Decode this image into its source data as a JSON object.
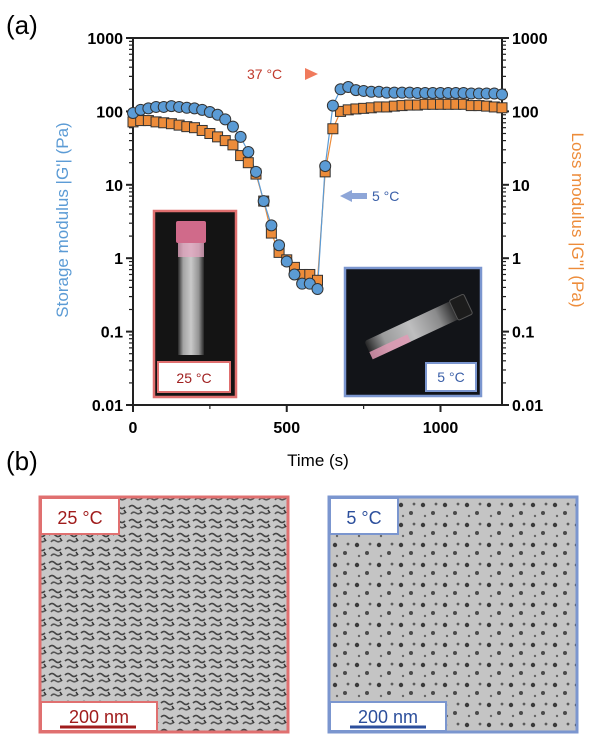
{
  "figure": {
    "panel_a_label": "(a)",
    "panel_b_label": "(b)"
  },
  "chart_data": {
    "type": "scatter",
    "xlabel": "Time (s)",
    "ylabel_left": "Storage modulus |G'| (Pa)",
    "ylabel_right": "Loss modulus |G''| (Pa)",
    "xlim": [
      0,
      1200
    ],
    "ylim": [
      0.01,
      1000
    ],
    "yscale": "log",
    "x_ticks": [
      "0",
      "500",
      "1000"
    ],
    "y_ticks": [
      "1000",
      "100",
      "10",
      "1",
      "0.1",
      "0.01"
    ],
    "colors": {
      "storage": "#5b9bd5",
      "loss": "#ed8c3a",
      "warm": "#e06060",
      "cold": "#7b96cf"
    },
    "series": [
      {
        "name": "Storage modulus |G'| (Pa)",
        "marker": "circle",
        "x": [
          0,
          25,
          50,
          75,
          100,
          125,
          150,
          175,
          200,
          225,
          250,
          275,
          300,
          325,
          350,
          375,
          400,
          425,
          450,
          475,
          500,
          525,
          550,
          575,
          600,
          625,
          650,
          675,
          700,
          725,
          750,
          775,
          800,
          825,
          850,
          875,
          900,
          925,
          950,
          975,
          1000,
          1025,
          1050,
          1075,
          1100,
          1125,
          1150,
          1175,
          1200
        ],
        "y": [
          95,
          105,
          110,
          115,
          115,
          118,
          115,
          112,
          110,
          105,
          98,
          90,
          78,
          62,
          45,
          28,
          15,
          6,
          2.8,
          1.5,
          0.9,
          0.6,
          0.45,
          0.45,
          0.38,
          18,
          120,
          200,
          215,
          195,
          190,
          185,
          185,
          180,
          180,
          180,
          180,
          178,
          178,
          178,
          178,
          178,
          178,
          178,
          175,
          175,
          175,
          175,
          170
        ]
      },
      {
        "name": "Loss modulus |G''| (Pa)",
        "marker": "square",
        "x": [
          0,
          25,
          50,
          75,
          100,
          125,
          150,
          175,
          200,
          225,
          250,
          275,
          300,
          325,
          350,
          375,
          400,
          425,
          450,
          475,
          500,
          525,
          550,
          575,
          600,
          625,
          650,
          675,
          700,
          725,
          750,
          775,
          800,
          825,
          850,
          875,
          900,
          925,
          950,
          975,
          1000,
          1025,
          1050,
          1075,
          1100,
          1125,
          1150,
          1175,
          1200
        ],
        "y": [
          72,
          75,
          75,
          72,
          70,
          68,
          65,
          62,
          60,
          55,
          50,
          45,
          40,
          35,
          25,
          20,
          14,
          6,
          2.2,
          1.2,
          0.95,
          0.75,
          0.6,
          0.6,
          0.5,
          15,
          58,
          100,
          105,
          108,
          110,
          112,
          115,
          115,
          118,
          120,
          122,
          122,
          125,
          125,
          125,
          125,
          125,
          125,
          120,
          120,
          118,
          115,
          112
        ]
      }
    ],
    "annotations": [
      {
        "text": "37 °C",
        "x": 640,
        "y": 300
      },
      {
        "text": "5 °C",
        "x": 640,
        "y": 15
      }
    ]
  },
  "insets": {
    "warm_label": "25 °C",
    "cold_label": "5 °C"
  },
  "tem": {
    "left_label": "25 °C",
    "right_label": "5 °C",
    "left_scale": "200 nm",
    "right_scale": "200 nm"
  }
}
